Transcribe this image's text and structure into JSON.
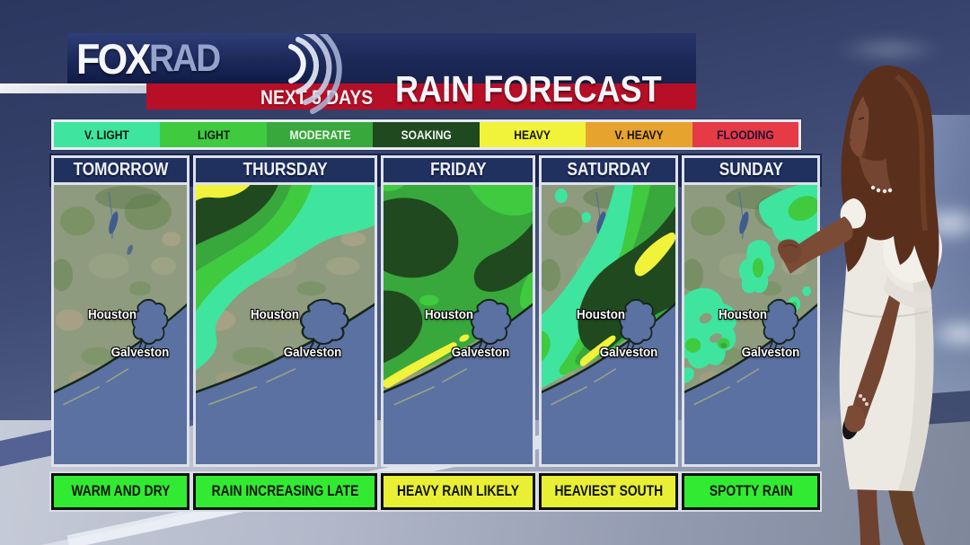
{
  "header": {
    "brand_fox": "FOX",
    "brand_rad": "RAD",
    "title": "RAIN FORECAST",
    "subtitle": "NEXT 5 DAYS",
    "bar_color": "#1c2857",
    "subtitle_bar_color": "#b70f27"
  },
  "legend": {
    "items": [
      {
        "label": "V. LIGHT",
        "color": "#3fe49e",
        "text_color": "#0c1a10"
      },
      {
        "label": "LIGHT",
        "color": "#3fca40",
        "text_color": "#0c1a10"
      },
      {
        "label": "MODERATE",
        "color": "#38a83c",
        "text_color": "#eef5ee"
      },
      {
        "label": "SOAKING",
        "color": "#20491f",
        "text_color": "#eef5ee"
      },
      {
        "label": "HEAVY",
        "color": "#f1f23a",
        "text_color": "#15150a"
      },
      {
        "label": "V. HEAVY",
        "color": "#e6a42e",
        "text_color": "#1b1309"
      },
      {
        "label": "FLOODING",
        "color": "#e63a47",
        "text_color": "#1d1232"
      }
    ]
  },
  "map": {
    "city_primary": "Houston",
    "city_secondary": "Galveston"
  },
  "panels": [
    {
      "day": "TOMORROW",
      "status": "WARM AND DRY",
      "status_color": "#32ea32",
      "rain_variant": "none"
    },
    {
      "day": "THURSDAY",
      "status": "RAIN INCREASING LATE",
      "status_color": "#32ea32",
      "rain_variant": "thursday"
    },
    {
      "day": "FRIDAY",
      "status": "HEAVY RAIN LIKELY",
      "status_color": "#e9ef35",
      "rain_variant": "friday"
    },
    {
      "day": "SATURDAY",
      "status": "HEAVIEST SOUTH",
      "status_color": "#e9ef35",
      "rain_variant": "saturday"
    },
    {
      "day": "SUNDAY",
      "status": "SPOTTY RAIN",
      "status_color": "#32ea32",
      "rain_variant": "sunday"
    }
  ]
}
